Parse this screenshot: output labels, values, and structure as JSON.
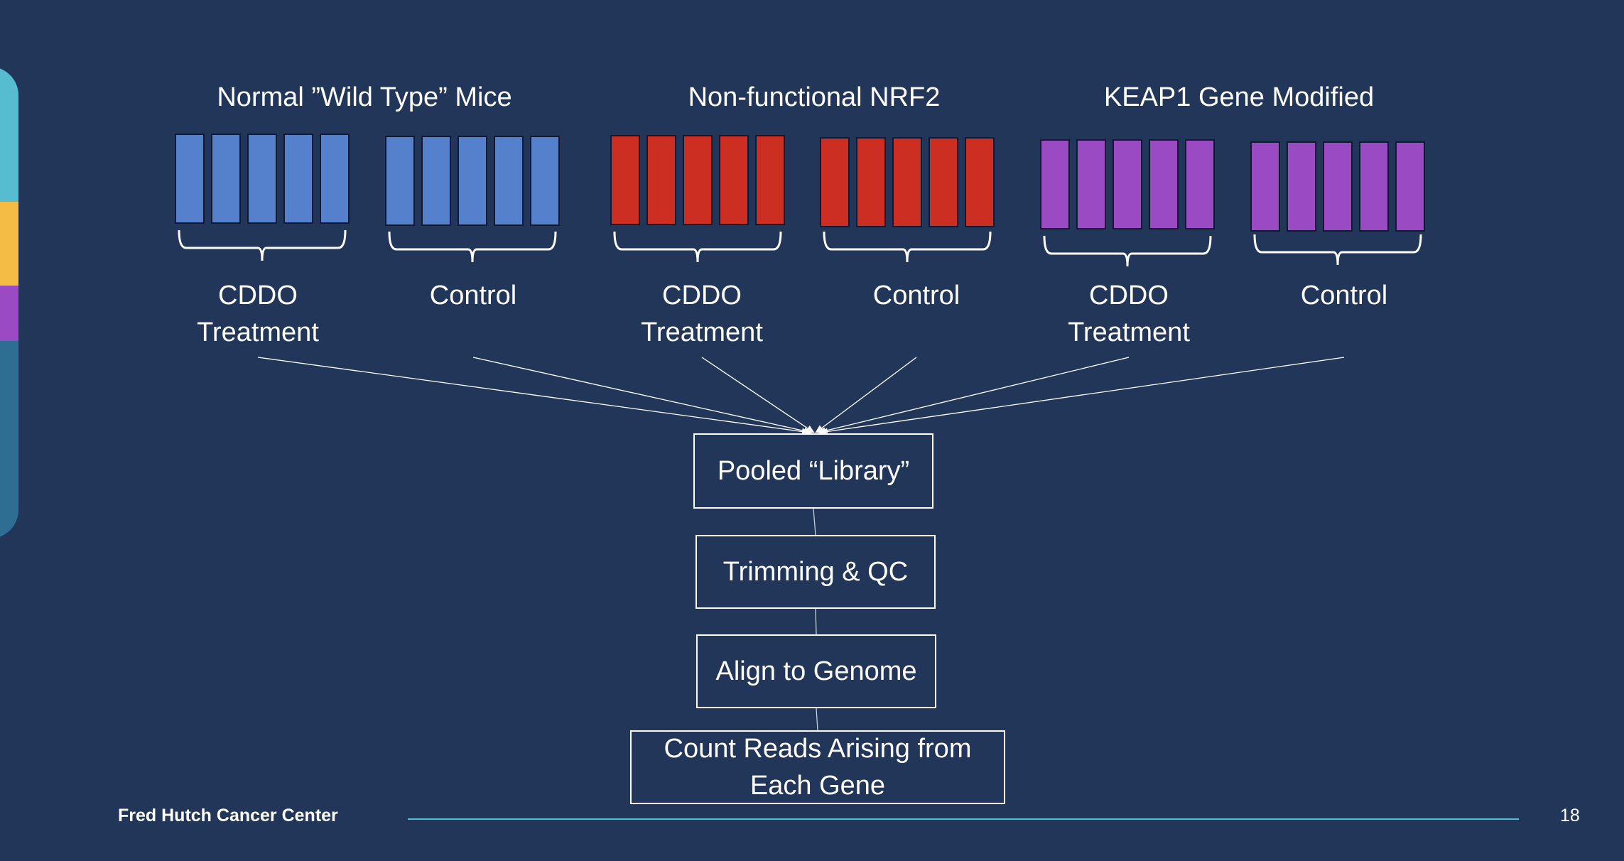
{
  "groups": [
    {
      "title": "Normal ”Wild Type” Mice",
      "color": "#5580cc",
      "conditions": [
        {
          "label_line1": "CDDO",
          "label_line2": "Treatment",
          "samples": 5
        },
        {
          "label_line1": "Control",
          "label_line2": "",
          "samples": 5
        }
      ]
    },
    {
      "title": "Non-functional NRF2",
      "color": "#cc2f22",
      "conditions": [
        {
          "label_line1": "CDDO",
          "label_line2": "Treatment",
          "samples": 5
        },
        {
          "label_line1": "Control",
          "label_line2": "",
          "samples": 5
        }
      ]
    },
    {
      "title": "KEAP1 Gene Modified",
      "color": "#9a4bc4",
      "conditions": [
        {
          "label_line1": "CDDO",
          "label_line2": "Treatment",
          "samples": 5
        },
        {
          "label_line1": "Control",
          "label_line2": "",
          "samples": 5
        }
      ]
    }
  ],
  "pipeline": {
    "steps": [
      {
        "line1": "Pooled “Library”",
        "line2": ""
      },
      {
        "line1": "Trimming & QC",
        "line2": ""
      },
      {
        "line1": "Align to Genome",
        "line2": ""
      },
      {
        "line1": "Count Reads Arising from",
        "line2": "Each Gene"
      }
    ]
  },
  "footer": {
    "org": "Fred Hutch Cancer Center",
    "page_number": "18"
  },
  "colors": {
    "background": "#22365a",
    "accent_line": "#56bcd0",
    "deco_teal": "#56bcd0",
    "deco_yellow": "#f4bb45",
    "deco_purple": "#9a4bc4",
    "deco_blue": "#2f6e93"
  }
}
